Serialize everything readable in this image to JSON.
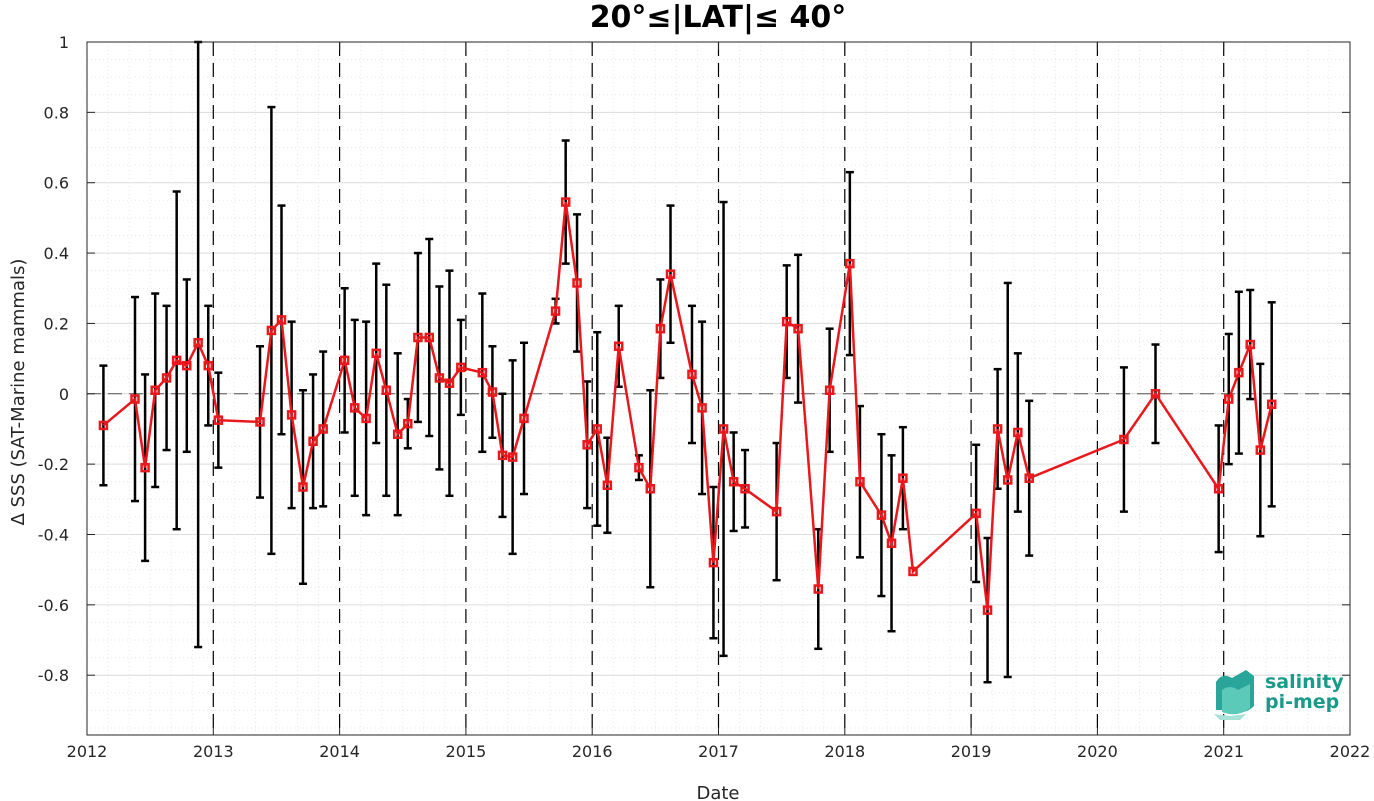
{
  "chart_data": {
    "type": "line",
    "title": "20°≤|LAT|≤ 40°",
    "xlabel": "Date",
    "ylabel": "Δ SSS (SAT-Marine mammals)",
    "xlim": [
      2012,
      2022
    ],
    "ylim": [
      -0.97,
      1.0
    ],
    "x_ticks": [
      "2012",
      "2013",
      "2014",
      "2015",
      "2016",
      "2017",
      "2018",
      "2019",
      "2020",
      "2021",
      "2022"
    ],
    "y_ticks": [
      "1",
      "0.8",
      "0.6",
      "0.4",
      "0.2",
      "0",
      "-0.2",
      "-0.4",
      "-0.6",
      "-0.8"
    ],
    "grid": true,
    "zero_line": true,
    "year_dividers": true,
    "colors": {
      "line": "#e8181c",
      "marker": "#e8181c",
      "errorbar": "#000000",
      "divider": "#000000"
    },
    "series": [
      {
        "x": [
          2012.13,
          2012.38,
          2012.46,
          2012.54,
          2012.63,
          2012.71,
          2012.79,
          2012.88,
          2012.96,
          2013.04,
          2013.37,
          2013.46,
          2013.54,
          2013.62,
          2013.71,
          2013.79,
          2013.87,
          2014.04,
          2014.12,
          2014.21,
          2014.29,
          2014.37,
          2014.46,
          2014.54,
          2014.62,
          2014.71,
          2014.79,
          2014.87,
          2014.96,
          2015.13,
          2015.21,
          2015.29,
          2015.37,
          2015.46,
          2015.71,
          2015.79,
          2015.88,
          2015.96,
          2016.04,
          2016.12,
          2016.21,
          2016.37,
          2016.46,
          2016.54,
          2016.62,
          2016.79,
          2016.87,
          2016.96,
          2017.04,
          2017.12,
          2017.21,
          2017.46,
          2017.54,
          2017.63,
          2017.79,
          2017.88,
          2018.04,
          2018.12,
          2018.29,
          2018.37,
          2018.46,
          2018.54,
          2019.04,
          2019.13,
          2019.21,
          2019.29,
          2019.37,
          2019.46,
          2020.21,
          2020.46,
          2020.96,
          2021.04,
          2021.12,
          2021.21,
          2021.29,
          2021.38
        ],
        "y": [
          -0.09,
          -0.015,
          -0.21,
          0.01,
          0.045,
          0.095,
          0.08,
          0.145,
          0.08,
          -0.075,
          -0.08,
          0.18,
          0.21,
          -0.06,
          -0.265,
          -0.135,
          -0.1,
          0.095,
          -0.04,
          -0.07,
          0.115,
          0.01,
          -0.115,
          -0.085,
          0.16,
          0.16,
          0.045,
          0.03,
          0.075,
          0.06,
          0.005,
          -0.175,
          -0.18,
          -0.07,
          0.235,
          0.545,
          0.315,
          -0.145,
          -0.1,
          -0.26,
          0.135,
          -0.21,
          -0.27,
          0.185,
          0.34,
          0.055,
          -0.04,
          -0.48,
          -0.1,
          -0.25,
          -0.27,
          -0.335,
          0.205,
          0.185,
          -0.555,
          0.01,
          0.37,
          -0.25,
          -0.345,
          -0.425,
          -0.24,
          -0.505,
          -0.34,
          -0.615,
          -0.1,
          -0.245,
          -0.11,
          -0.24,
          -0.13,
          0.0,
          -0.27,
          -0.015,
          0.06,
          0.14,
          -0.16,
          -0.03
        ],
        "err": [
          0.17,
          0.29,
          0.265,
          0.275,
          0.205,
          0.48,
          0.245,
          0.865,
          0.17,
          0.135,
          0.215,
          0.635,
          0.325,
          0.265,
          0.275,
          0.19,
          0.22,
          0.205,
          0.25,
          0.275,
          0.255,
          0.3,
          0.23,
          0.07,
          0.24,
          0.28,
          0.26,
          0.32,
          0.135,
          0.225,
          0.13,
          0.175,
          0.275,
          0.215,
          0.035,
          0.175,
          0.195,
          0.18,
          0.275,
          0.135,
          0.115,
          0.035,
          0.28,
          0.14,
          0.195,
          0.195,
          0.245,
          0.215,
          0.645,
          0.14,
          0.11,
          0.195,
          0.16,
          0.21,
          0.17,
          0.175,
          0.26,
          0.215,
          0.23,
          0.25,
          0.145,
          0.0,
          0.195,
          0.205,
          0.17,
          0.56,
          0.225,
          0.22,
          0.205,
          0.14,
          0.18,
          0.185,
          0.23,
          0.155,
          0.245,
          0.29
        ]
      }
    ]
  },
  "logo": {
    "line1": "salinity",
    "line2": "pi-mep"
  }
}
